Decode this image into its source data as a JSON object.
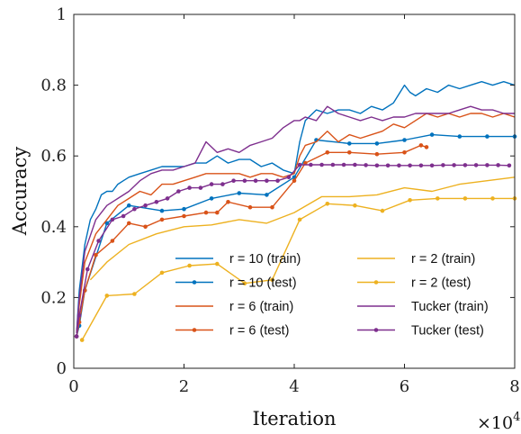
{
  "chart_data": {
    "type": "line",
    "xlabel": "Iteration",
    "ylabel": "Accuracy",
    "x_multiplier_label": {
      "base": "×10",
      "exponent": "4"
    },
    "xlim": [
      0,
      8
    ],
    "ylim": [
      0,
      1
    ],
    "xticks": [
      0,
      2,
      4,
      6,
      8
    ],
    "xtick_labels": [
      "0",
      "2",
      "4",
      "6",
      "8"
    ],
    "yticks": [
      0,
      0.2,
      0.4,
      0.6,
      0.8,
      1
    ],
    "ytick_labels": [
      "0",
      "0.2",
      "0.4",
      "0.6",
      "0.8",
      "1"
    ],
    "grid": false,
    "legend_position": "bottom-right",
    "series": [
      {
        "name": "r = 10 (train)",
        "color": "#0072BD",
        "markers": false,
        "x": [
          0.05,
          0.1,
          0.2,
          0.3,
          0.4,
          0.5,
          0.6,
          0.7,
          0.8,
          0.9,
          1.0,
          1.2,
          1.4,
          1.6,
          1.8,
          2.0,
          2.2,
          2.4,
          2.6,
          2.8,
          3.0,
          3.2,
          3.4,
          3.6,
          3.8,
          4.0,
          4.1,
          4.2,
          4.4,
          4.6,
          4.8,
          5.0,
          5.2,
          5.4,
          5.6,
          5.8,
          6.0,
          6.1,
          6.2,
          6.4,
          6.6,
          6.8,
          7.0,
          7.2,
          7.4,
          7.6,
          7.8,
          8.0
        ],
        "y": [
          0.1,
          0.22,
          0.35,
          0.42,
          0.45,
          0.49,
          0.5,
          0.5,
          0.52,
          0.53,
          0.54,
          0.55,
          0.56,
          0.57,
          0.57,
          0.57,
          0.58,
          0.58,
          0.6,
          0.58,
          0.59,
          0.59,
          0.57,
          0.58,
          0.56,
          0.55,
          0.64,
          0.7,
          0.73,
          0.72,
          0.73,
          0.73,
          0.72,
          0.74,
          0.73,
          0.75,
          0.8,
          0.78,
          0.77,
          0.79,
          0.78,
          0.8,
          0.79,
          0.8,
          0.81,
          0.8,
          0.81,
          0.8
        ]
      },
      {
        "name": "r = 10 (test)",
        "color": "#0072BD",
        "markers": true,
        "x": [
          0.05,
          0.1,
          0.2,
          0.6,
          1.0,
          1.6,
          2.0,
          2.5,
          3.0,
          3.5,
          4.0,
          4.4,
          5.0,
          5.5,
          6.0,
          6.5,
          7.0,
          7.5,
          8.0
        ],
        "y": [
          0.09,
          0.12,
          0.22,
          0.41,
          0.46,
          0.445,
          0.45,
          0.48,
          0.495,
          0.49,
          0.54,
          0.645,
          0.635,
          0.635,
          0.645,
          0.66,
          0.655,
          0.655,
          0.655
        ]
      },
      {
        "name": "r = 6 (train)",
        "color": "#D95319",
        "markers": false,
        "x": [
          0.05,
          0.1,
          0.2,
          0.4,
          0.6,
          0.8,
          1.0,
          1.2,
          1.4,
          1.6,
          1.8,
          2.0,
          2.2,
          2.4,
          2.6,
          2.8,
          3.0,
          3.2,
          3.4,
          3.6,
          3.8,
          4.0,
          4.1,
          4.2,
          4.4,
          4.6,
          4.8,
          5.0,
          5.2,
          5.4,
          5.6,
          5.8,
          6.0,
          6.4,
          6.6,
          6.8,
          7.0,
          7.2,
          7.4,
          7.6,
          7.8,
          8.0
        ],
        "y": [
          0.1,
          0.18,
          0.3,
          0.38,
          0.42,
          0.46,
          0.48,
          0.5,
          0.49,
          0.52,
          0.52,
          0.53,
          0.54,
          0.55,
          0.55,
          0.55,
          0.55,
          0.54,
          0.55,
          0.55,
          0.54,
          0.55,
          0.6,
          0.63,
          0.64,
          0.67,
          0.64,
          0.66,
          0.65,
          0.66,
          0.67,
          0.69,
          0.68,
          0.72,
          0.71,
          0.72,
          0.71,
          0.72,
          0.72,
          0.71,
          0.72,
          0.71
        ]
      },
      {
        "name": "r = 6 (test)",
        "color": "#D95319",
        "markers": true,
        "x": [
          0.05,
          0.1,
          0.2,
          0.4,
          0.7,
          1.0,
          1.3,
          1.6,
          2.0,
          2.4,
          2.6,
          2.8,
          3.2,
          3.6,
          4.0,
          4.2,
          4.6,
          5.0,
          5.5,
          6.0,
          6.3,
          6.4
        ],
        "y": [
          0.09,
          0.13,
          0.22,
          0.32,
          0.36,
          0.41,
          0.4,
          0.42,
          0.43,
          0.44,
          0.44,
          0.47,
          0.455,
          0.455,
          0.53,
          0.58,
          0.61,
          0.61,
          0.605,
          0.61,
          0.63,
          0.625
        ]
      },
      {
        "name": "r = 2 (train)",
        "color": "#EDB120",
        "markers": false,
        "x": [
          0.3,
          0.6,
          1.0,
          1.5,
          2.0,
          2.5,
          3.0,
          3.5,
          4.0,
          4.5,
          5.0,
          5.5,
          6.0,
          6.5,
          7.0,
          7.5,
          8.0
        ],
        "y": [
          0.25,
          0.3,
          0.35,
          0.38,
          0.4,
          0.405,
          0.42,
          0.41,
          0.44,
          0.485,
          0.485,
          0.49,
          0.51,
          0.5,
          0.52,
          0.53,
          0.54
        ]
      },
      {
        "name": "r = 2 (test)",
        "color": "#EDB120",
        "markers": true,
        "x": [
          0.15,
          0.6,
          1.1,
          1.6,
          2.1,
          2.6,
          3.1,
          3.6,
          4.1,
          4.6,
          5.1,
          5.6,
          6.1,
          6.6,
          7.1,
          7.6,
          8.0
        ],
        "y": [
          0.08,
          0.205,
          0.21,
          0.27,
          0.29,
          0.295,
          0.24,
          0.25,
          0.42,
          0.465,
          0.46,
          0.445,
          0.475,
          0.48,
          0.48,
          0.48,
          0.48
        ]
      },
      {
        "name": "Tucker (train)",
        "color": "#7E2F8E",
        "markers": false,
        "x": [
          0.05,
          0.1,
          0.2,
          0.4,
          0.6,
          0.8,
          1.0,
          1.2,
          1.4,
          1.6,
          1.8,
          2.0,
          2.2,
          2.4,
          2.6,
          2.8,
          3.0,
          3.2,
          3.4,
          3.6,
          3.8,
          4.0,
          4.1,
          4.2,
          4.4,
          4.6,
          4.8,
          5.0,
          5.2,
          5.4,
          5.6,
          5.8,
          6.0,
          6.2,
          6.4,
          6.6,
          6.8,
          7.0,
          7.2,
          7.4,
          7.6,
          7.8,
          8.0
        ],
        "y": [
          0.1,
          0.2,
          0.33,
          0.42,
          0.46,
          0.48,
          0.5,
          0.53,
          0.55,
          0.56,
          0.56,
          0.57,
          0.58,
          0.64,
          0.61,
          0.62,
          0.61,
          0.63,
          0.64,
          0.65,
          0.68,
          0.7,
          0.7,
          0.71,
          0.7,
          0.74,
          0.72,
          0.71,
          0.7,
          0.71,
          0.7,
          0.71,
          0.71,
          0.72,
          0.72,
          0.72,
          0.72,
          0.73,
          0.74,
          0.73,
          0.73,
          0.72,
          0.72
        ]
      },
      {
        "name": "Tucker (test)",
        "color": "#7E2F8E",
        "markers": true,
        "x": [
          0.05,
          0.1,
          0.25,
          0.45,
          0.7,
          0.9,
          1.1,
          1.3,
          1.5,
          1.7,
          1.9,
          2.1,
          2.3,
          2.5,
          2.7,
          2.9,
          3.1,
          3.3,
          3.5,
          3.7,
          3.9,
          4.1,
          4.3,
          4.5,
          4.7,
          4.9,
          5.1,
          5.3,
          5.5,
          5.7,
          5.9,
          6.1,
          6.3,
          6.5,
          6.7,
          6.9,
          7.1,
          7.3,
          7.5,
          7.7,
          7.9
        ],
        "y": [
          0.09,
          0.15,
          0.28,
          0.36,
          0.42,
          0.43,
          0.45,
          0.46,
          0.47,
          0.48,
          0.5,
          0.51,
          0.51,
          0.52,
          0.52,
          0.53,
          0.53,
          0.53,
          0.53,
          0.53,
          0.54,
          0.575,
          0.575,
          0.575,
          0.575,
          0.575,
          0.575,
          0.574,
          0.573,
          0.573,
          0.573,
          0.573,
          0.573,
          0.573,
          0.574,
          0.574,
          0.574,
          0.574,
          0.574,
          0.574,
          0.573
        ]
      }
    ]
  }
}
